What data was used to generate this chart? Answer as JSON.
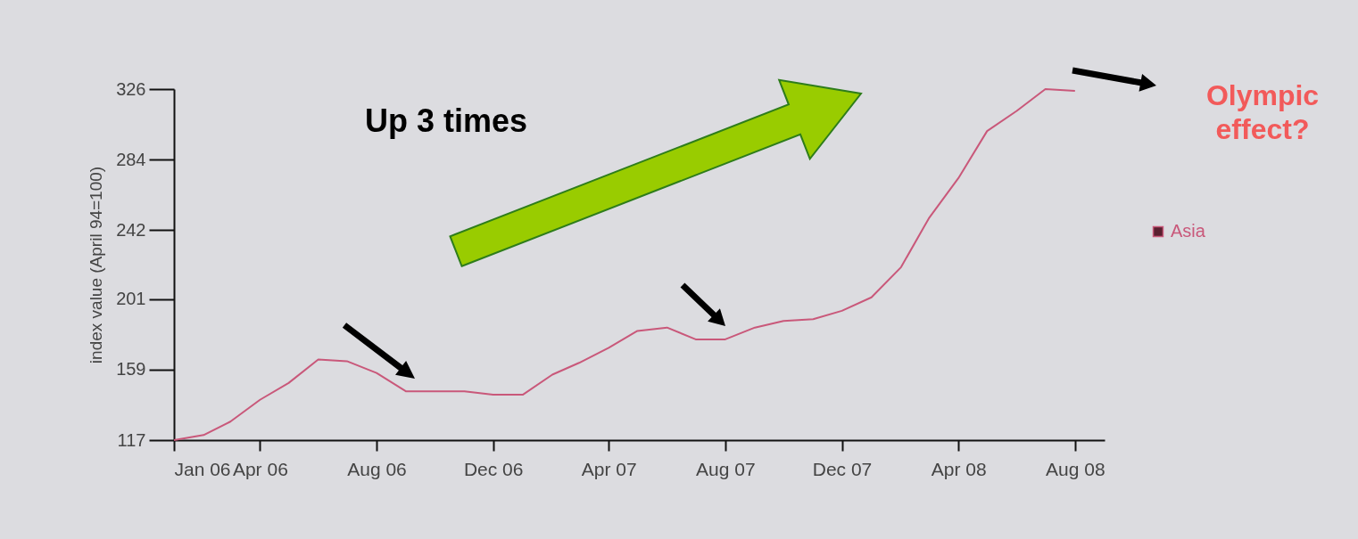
{
  "chart_data": {
    "type": "line",
    "ylabel": "index value (April 94=100)",
    "x": [
      "2006-01",
      "2006-02",
      "2006-03",
      "2006-04",
      "2006-05",
      "2006-06",
      "2006-07",
      "2006-08",
      "2006-09",
      "2006-10",
      "2006-11",
      "2006-12",
      "2007-01",
      "2007-02",
      "2007-03",
      "2007-04",
      "2007-05",
      "2007-06",
      "2007-07",
      "2007-08",
      "2007-09",
      "2007-10",
      "2007-11",
      "2007-12",
      "2008-01",
      "2008-02",
      "2008-03",
      "2008-04",
      "2008-05",
      "2008-06",
      "2008-07",
      "2008-08"
    ],
    "series": [
      {
        "name": "Asia",
        "color": "#c9587a",
        "values": [
          117,
          120,
          128,
          141,
          151,
          165,
          164,
          157,
          146,
          146,
          146,
          144,
          144,
          156,
          163,
          172,
          182,
          184,
          177,
          177,
          184,
          188,
          189,
          194,
          202,
          220,
          249,
          273,
          301,
          313,
          326,
          325
        ]
      }
    ],
    "xlim": [
      "2006-01",
      "2008-09"
    ],
    "xticks": [
      {
        "value": "2006-01",
        "label": "Jan 06"
      },
      {
        "value": "2006-04",
        "label": "Apr 06"
      },
      {
        "value": "2006-08",
        "label": "Aug 06"
      },
      {
        "value": "2006-12",
        "label": "Dec 06"
      },
      {
        "value": "2007-04",
        "label": "Apr 07"
      },
      {
        "value": "2007-08",
        "label": "Aug 07"
      },
      {
        "value": "2007-12",
        "label": "Dec 07"
      },
      {
        "value": "2008-04",
        "label": "Apr 08"
      },
      {
        "value": "2008-08",
        "label": "Aug 08"
      }
    ],
    "ylim": [
      117,
      326
    ],
    "yticks": [
      117,
      159,
      201,
      242,
      284,
      326
    ],
    "legend": "right",
    "annotations": [
      "Up 3 times",
      "Olympic effect?"
    ]
  }
}
